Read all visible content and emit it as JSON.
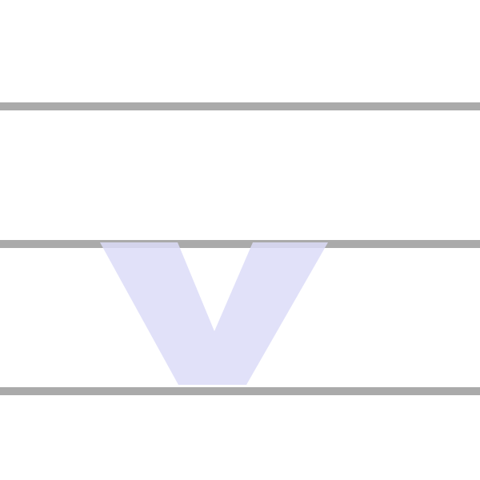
{
  "letter": {
    "glyph": "v",
    "color": "#dcdcf8"
  },
  "guide_lines": {
    "color": "#aaaaaa",
    "count": 3
  },
  "background": "#ffffff"
}
